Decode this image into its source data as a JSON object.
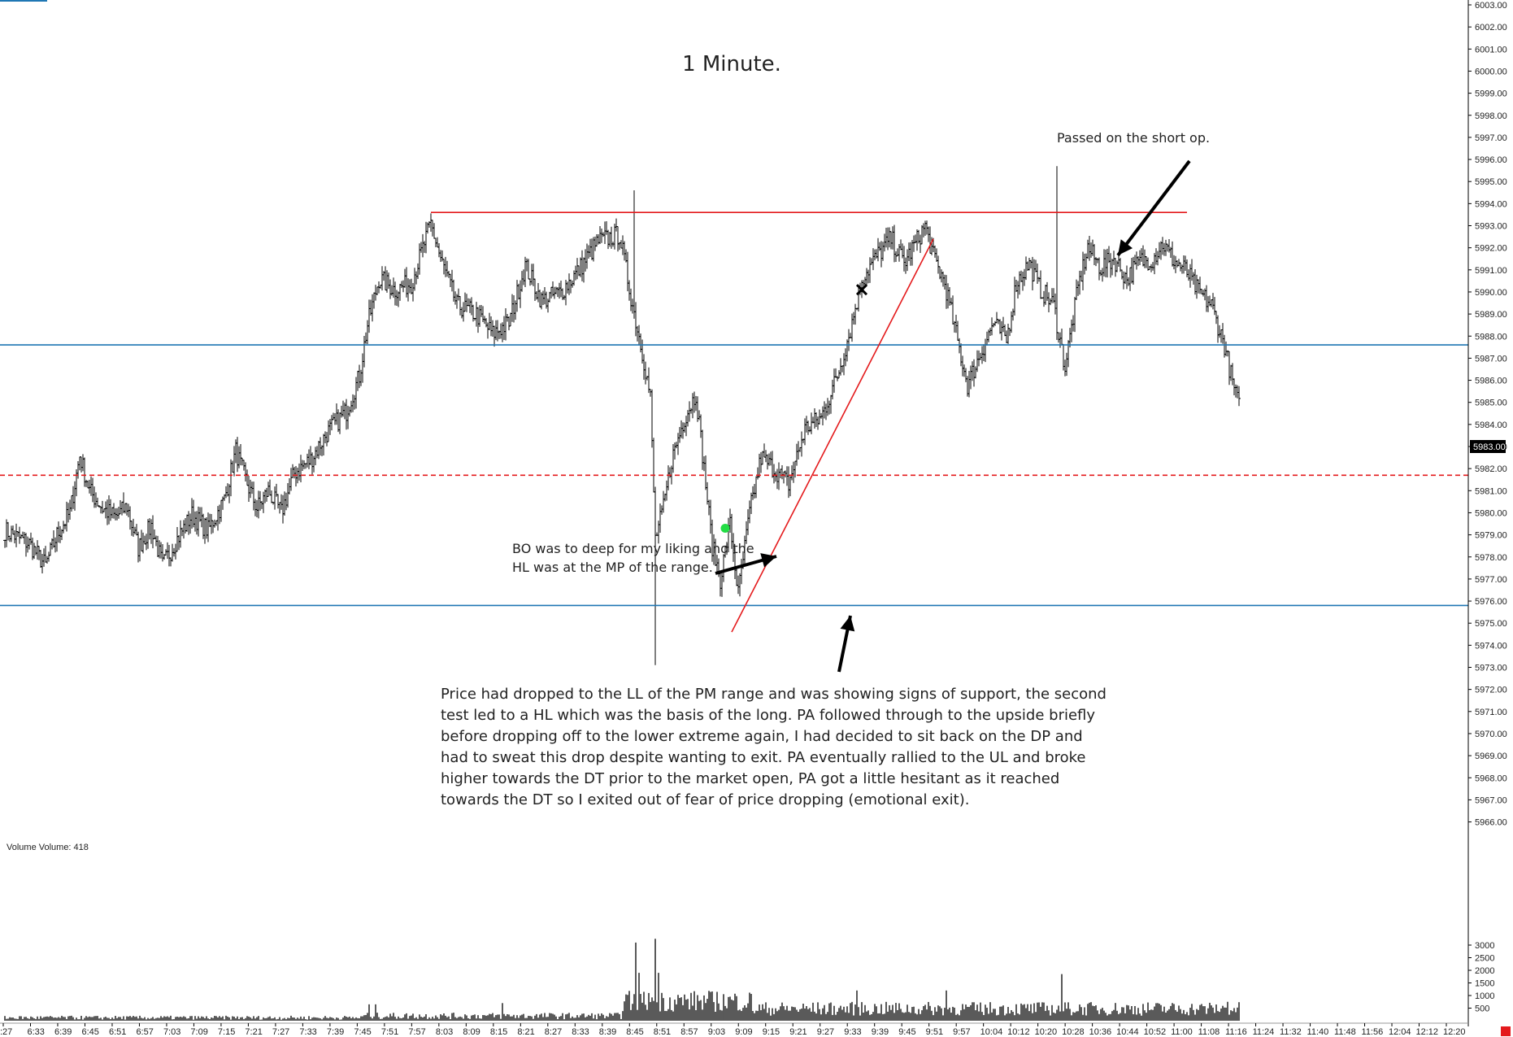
{
  "chart_data": {
    "type": "ohlc",
    "title": "1 Minute.",
    "volume_label": "Volume  Volume: 418",
    "last_price_label": "5983.00",
    "ylim": [
      5966,
      6003
    ],
    "y_ticks": [
      "6003.00",
      "6002.00",
      "6001.00",
      "6000.00",
      "5999.00",
      "5998.00",
      "5997.00",
      "5996.00",
      "5995.00",
      "5994.00",
      "5993.00",
      "5992.00",
      "5991.00",
      "5990.00",
      "5989.00",
      "5988.00",
      "5987.00",
      "5986.00",
      "5985.00",
      "5984.00",
      "5983.00",
      "5982.00",
      "5981.00",
      "5980.00",
      "5979.00",
      "5978.00",
      "5977.00",
      "5976.00",
      "5975.00",
      "5974.00",
      "5973.00",
      "5972.00",
      "5971.00",
      "5970.00",
      "5969.00",
      "5968.00",
      "5967.00",
      "5966.00"
    ],
    "volume_ticks": [
      "3000",
      "2500",
      "2000",
      "1500",
      "1000",
      "500"
    ],
    "x_ticks": [
      ":27",
      "6:33",
      "6:39",
      "6:45",
      "6:51",
      "6:57",
      "7:03",
      "7:09",
      "7:15",
      "7:21",
      "7:27",
      "7:33",
      "7:39",
      "7:45",
      "7:51",
      "7:57",
      "8:03",
      "8:09",
      "8:15",
      "8:21",
      "8:27",
      "8:33",
      "8:39",
      "8:45",
      "8:51",
      "8:57",
      "9:03",
      "9:09",
      "9:15",
      "9:21",
      "9:27",
      "9:33",
      "9:39",
      "9:45",
      "9:51",
      "9:57",
      "10:04",
      "10:12",
      "10:20",
      "10:28",
      "10:36",
      "10:44",
      "10:52",
      "11:00",
      "11:08",
      "11:16",
      "11:24",
      "11:32",
      "11:40",
      "11:48",
      "11:56",
      "12:04",
      "12:12",
      "12:20"
    ],
    "anchors": [
      {
        "x": 0,
        "p": 5979.2
      },
      {
        "x": 15,
        "p": 5978.6
      },
      {
        "x": 25,
        "p": 5977.6
      },
      {
        "x": 32,
        "p": 5979.0
      },
      {
        "x": 40,
        "p": 5980.0
      },
      {
        "x": 46,
        "p": 5982.6
      },
      {
        "x": 52,
        "p": 5981.0
      },
      {
        "x": 60,
        "p": 5980.2
      },
      {
        "x": 68,
        "p": 5979.8
      },
      {
        "x": 75,
        "p": 5980.3
      },
      {
        "x": 82,
        "p": 5978.4
      },
      {
        "x": 90,
        "p": 5979.4
      },
      {
        "x": 97,
        "p": 5977.6
      },
      {
        "x": 105,
        "p": 5978.7
      },
      {
        "x": 115,
        "p": 5979.9
      },
      {
        "x": 125,
        "p": 5979.2
      },
      {
        "x": 135,
        "p": 5980.6
      },
      {
        "x": 142,
        "p": 5982.8
      },
      {
        "x": 148,
        "p": 5981.5
      },
      {
        "x": 155,
        "p": 5980.2
      },
      {
        "x": 162,
        "p": 5981.0
      },
      {
        "x": 170,
        "p": 5980.0
      },
      {
        "x": 178,
        "p": 5981.8
      },
      {
        "x": 188,
        "p": 5982.4
      },
      {
        "x": 198,
        "p": 5983.6
      },
      {
        "x": 210,
        "p": 5984.6
      },
      {
        "x": 218,
        "p": 5986.2
      },
      {
        "x": 223,
        "p": 5988.5
      },
      {
        "x": 230,
        "p": 5990.6
      },
      {
        "x": 240,
        "p": 5990.1
      },
      {
        "x": 250,
        "p": 5990.4
      },
      {
        "x": 262,
        "p": 5993.1
      },
      {
        "x": 268,
        "p": 5991.5
      },
      {
        "x": 278,
        "p": 5989.4
      },
      {
        "x": 290,
        "p": 5989.0
      },
      {
        "x": 300,
        "p": 5988.1
      },
      {
        "x": 310,
        "p": 5988.6
      },
      {
        "x": 320,
        "p": 5991.2
      },
      {
        "x": 330,
        "p": 5989.6
      },
      {
        "x": 342,
        "p": 5990.0
      },
      {
        "x": 352,
        "p": 5990.9
      },
      {
        "x": 365,
        "p": 5992.3
      },
      {
        "x": 378,
        "p": 5992.6
      },
      {
        "x": 386,
        "p": 5989.4
      },
      {
        "x": 392,
        "p": 5987.3
      },
      {
        "x": 397,
        "p": 5985.2
      },
      {
        "x": 400,
        "p": 5978.8
      },
      {
        "x": 405,
        "p": 5980.2
      },
      {
        "x": 410,
        "p": 5982.4
      },
      {
        "x": 418,
        "p": 5984.3
      },
      {
        "x": 425,
        "p": 5985.4
      },
      {
        "x": 430,
        "p": 5982.0
      },
      {
        "x": 435,
        "p": 5978.5
      },
      {
        "x": 440,
        "p": 5977.0
      },
      {
        "x": 446,
        "p": 5979.5
      },
      {
        "x": 451,
        "p": 5976.3
      },
      {
        "x": 458,
        "p": 5980.0
      },
      {
        "x": 465,
        "p": 5982.5
      },
      {
        "x": 473,
        "p": 5982.0
      },
      {
        "x": 482,
        "p": 5981.3
      },
      {
        "x": 492,
        "p": 5983.8
      },
      {
        "x": 502,
        "p": 5984.3
      },
      {
        "x": 512,
        "p": 5986.2
      },
      {
        "x": 520,
        "p": 5988.3
      },
      {
        "x": 527,
        "p": 5990.6
      },
      {
        "x": 536,
        "p": 5991.6
      },
      {
        "x": 545,
        "p": 5992.4
      },
      {
        "x": 553,
        "p": 5991.3
      },
      {
        "x": 560,
        "p": 5992.2
      },
      {
        "x": 566,
        "p": 5993.0
      },
      {
        "x": 571,
        "p": 5991.6
      },
      {
        "x": 578,
        "p": 5990.4
      },
      {
        "x": 584,
        "p": 5988.4
      },
      {
        "x": 592,
        "p": 5985.8
      },
      {
        "x": 600,
        "p": 5987.2
      },
      {
        "x": 608,
        "p": 5988.6
      },
      {
        "x": 616,
        "p": 5987.8
      },
      {
        "x": 622,
        "p": 5990.4
      },
      {
        "x": 630,
        "p": 5991.3
      },
      {
        "x": 636,
        "p": 5990.2
      },
      {
        "x": 645,
        "p": 5989.4
      },
      {
        "x": 652,
        "p": 5986.6
      },
      {
        "x": 660,
        "p": 5990.2
      },
      {
        "x": 666,
        "p": 5992.0
      },
      {
        "x": 674,
        "p": 5991.1
      },
      {
        "x": 682,
        "p": 5991.5
      },
      {
        "x": 690,
        "p": 5990.6
      },
      {
        "x": 698,
        "p": 5991.4
      },
      {
        "x": 706,
        "p": 5991.5
      },
      {
        "x": 712,
        "p": 5992.2
      },
      {
        "x": 719,
        "p": 5991.4
      },
      {
        "x": 726,
        "p": 5991.0
      },
      {
        "x": 734,
        "p": 5990.0
      },
      {
        "x": 742,
        "p": 5989.4
      },
      {
        "x": 750,
        "p": 5987.6
      },
      {
        "x": 755,
        "p": 5985.9
      },
      {
        "x": 759,
        "p": 5984.8
      }
    ],
    "key_levels": [
      {
        "name": "Upper range (red)",
        "price": 5993.6,
        "x_from": 262,
        "x_to": 727
      },
      {
        "name": "Range high (blue)",
        "price": 5987.6
      },
      {
        "name": "Midpoint (red dashed)",
        "price": 5981.7
      },
      {
        "name": "Range low (blue)",
        "price": 5975.8
      }
    ],
    "trendline": {
      "x1": 447,
      "p1": 5974.6,
      "x2": 571,
      "p2": 5992.4
    },
    "entry_marker": {
      "x": 443,
      "p": 5979.3
    },
    "exit_marker": {
      "x": 527,
      "p": 5990.1
    },
    "volume_spikes": [
      {
        "x": 388,
        "v": 3100
      },
      {
        "x": 390,
        "v": 1900
      },
      {
        "x": 400,
        "v": 3250
      },
      {
        "x": 402,
        "v": 1900
      },
      {
        "x": 396,
        "v": 1100
      },
      {
        "x": 650,
        "v": 1850
      },
      {
        "x": 306,
        "v": 700
      },
      {
        "x": 224,
        "v": 650
      },
      {
        "x": 228,
        "v": 650
      },
      {
        "x": 579,
        "v": 1200
      },
      {
        "x": 524,
        "v": 1200
      },
      {
        "x": 752,
        "v": 750
      }
    ]
  },
  "annotations": {
    "short_note": "Passed on the short op.",
    "bo_note": "BO was to deep for my liking and the HL was at the MP of the range.",
    "main_note": "Price had dropped to the LL of the PM range and was showing signs of support, the second test led to a HL which was the basis of the long.  PA followed through to the upside briefly before dropping off to the lower extreme again, I had decided to sit back on the  DP and had to sweat this drop despite wanting to exit.  PA eventually rallied to the UL and broke higher towards the DT prior to the market open, PA got a little hesitant as it reached towards the DT so I exited out of fear of price dropping (emotional exit)."
  },
  "colors": {
    "price_bar": "#000000",
    "red_level": "#e41a1c",
    "blue_level": "#1f77b4",
    "entry_marker": "#22dd44",
    "volume_bar": "#000000"
  }
}
